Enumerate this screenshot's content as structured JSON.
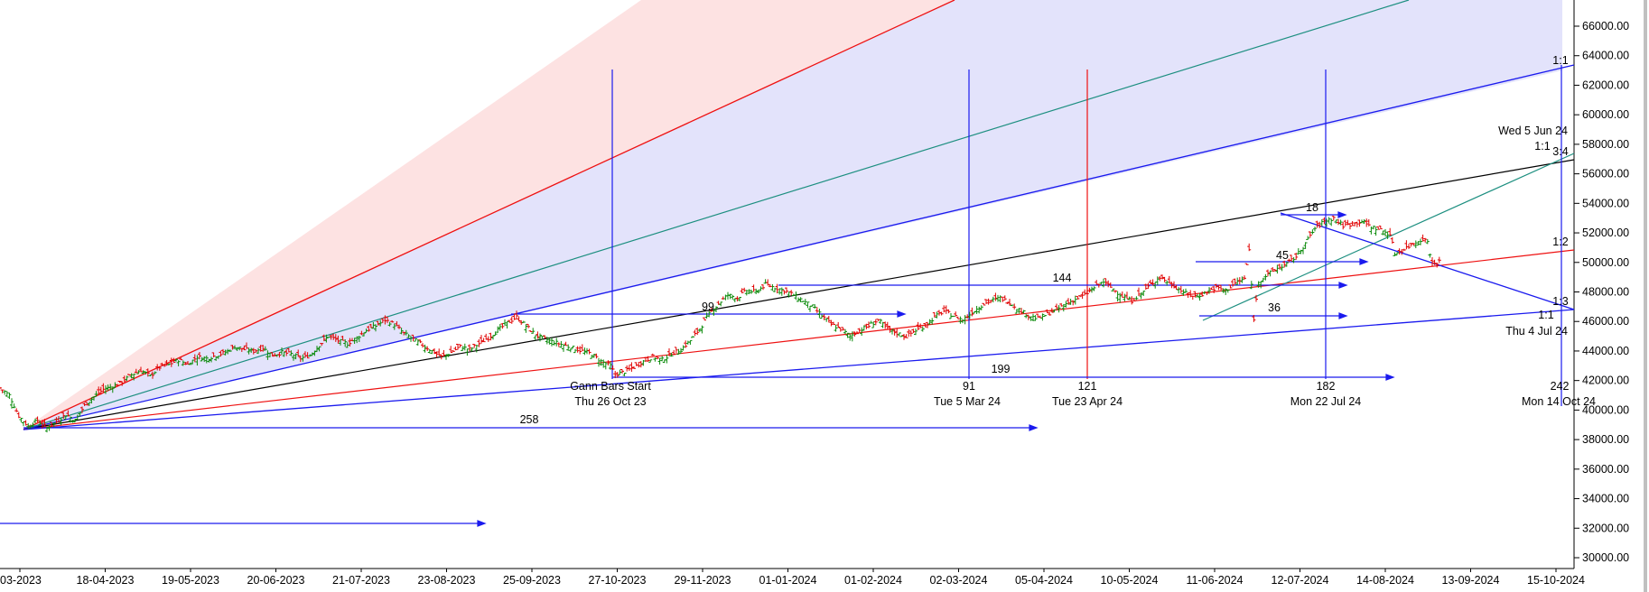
{
  "chart_data": {
    "type": "line",
    "title": "",
    "xlabel": "",
    "ylabel": "",
    "ylim": [
      30000,
      67000
    ],
    "yticks": [
      30000,
      32000,
      34000,
      36000,
      38000,
      40000,
      42000,
      44000,
      46000,
      48000,
      50000,
      52000,
      54000,
      56000,
      58000,
      60000,
      62000,
      64000,
      66000
    ],
    "x_dates": [
      "03-2023",
      "18-04-2023",
      "19-05-2023",
      "20-06-2023",
      "21-07-2023",
      "23-08-2023",
      "25-09-2023",
      "27-10-2023",
      "29-11-2023",
      "01-01-2024",
      "01-02-2024",
      "02-03-2024",
      "05-04-2024",
      "10-05-2024",
      "11-06-2024",
      "12-07-2024",
      "14-08-2024",
      "13-09-2024",
      "15-10-2024"
    ],
    "price_series": [
      [
        0,
        41500
      ],
      [
        4,
        41000
      ],
      [
        8,
        39600
      ],
      [
        12,
        38900
      ],
      [
        16,
        39300
      ],
      [
        20,
        38800
      ],
      [
        24,
        39200
      ],
      [
        28,
        39700
      ],
      [
        32,
        39300
      ],
      [
        36,
        40300
      ],
      [
        40,
        40900
      ],
      [
        44,
        41400
      ],
      [
        48,
        41600
      ],
      [
        52,
        41900
      ],
      [
        56,
        42400
      ],
      [
        60,
        42700
      ],
      [
        64,
        42300
      ],
      [
        68,
        42900
      ],
      [
        72,
        43100
      ],
      [
        76,
        43400
      ],
      [
        80,
        43100
      ],
      [
        84,
        43600
      ],
      [
        88,
        43500
      ],
      [
        92,
        43700
      ],
      [
        96,
        43900
      ],
      [
        100,
        44300
      ],
      [
        104,
        44100
      ],
      [
        108,
        44000
      ],
      [
        112,
        44200
      ],
      [
        116,
        43700
      ],
      [
        120,
        43900
      ],
      [
        124,
        43800
      ],
      [
        128,
        43500
      ],
      [
        132,
        43700
      ],
      [
        136,
        44400
      ],
      [
        140,
        45000
      ],
      [
        144,
        44700
      ],
      [
        148,
        44500
      ],
      [
        152,
        44900
      ],
      [
        156,
        45400
      ],
      [
        160,
        45700
      ],
      [
        164,
        46100
      ],
      [
        168,
        45800
      ],
      [
        172,
        45200
      ],
      [
        176,
        44800
      ],
      [
        180,
        44400
      ],
      [
        184,
        44000
      ],
      [
        188,
        43600
      ],
      [
        192,
        43900
      ],
      [
        196,
        44300
      ],
      [
        200,
        44100
      ],
      [
        204,
        44500
      ],
      [
        208,
        44900
      ],
      [
        212,
        45400
      ],
      [
        216,
        45900
      ],
      [
        220,
        46300
      ],
      [
        224,
        45700
      ],
      [
        228,
        45100
      ],
      [
        232,
        44800
      ],
      [
        236,
        44600
      ],
      [
        240,
        44400
      ],
      [
        244,
        44200
      ],
      [
        248,
        44000
      ],
      [
        252,
        43800
      ],
      [
        256,
        43300
      ],
      [
        260,
        43000
      ],
      [
        262,
        42400
      ],
      [
        266,
        42600
      ],
      [
        270,
        42900
      ],
      [
        274,
        43300
      ],
      [
        278,
        43600
      ],
      [
        282,
        43400
      ],
      [
        286,
        43800
      ],
      [
        290,
        44100
      ],
      [
        294,
        44700
      ],
      [
        298,
        45500
      ],
      [
        302,
        46500
      ],
      [
        306,
        47200
      ],
      [
        310,
        47800
      ],
      [
        314,
        47600
      ],
      [
        318,
        48100
      ],
      [
        322,
        48000
      ],
      [
        326,
        48500
      ],
      [
        330,
        48300
      ],
      [
        334,
        48100
      ],
      [
        338,
        47800
      ],
      [
        342,
        47400
      ],
      [
        346,
        47000
      ],
      [
        350,
        46400
      ],
      [
        354,
        45800
      ],
      [
        358,
        45500
      ],
      [
        362,
        45000
      ],
      [
        366,
        45400
      ],
      [
        370,
        45700
      ],
      [
        374,
        46100
      ],
      [
        378,
        45500
      ],
      [
        382,
        45200
      ],
      [
        386,
        45000
      ],
      [
        390,
        45400
      ],
      [
        394,
        45700
      ],
      [
        398,
        46300
      ],
      [
        402,
        46700
      ],
      [
        406,
        46400
      ],
      [
        410,
        46100
      ],
      [
        414,
        46600
      ],
      [
        418,
        47100
      ],
      [
        422,
        47400
      ],
      [
        426,
        47600
      ],
      [
        430,
        47300
      ],
      [
        434,
        46800
      ],
      [
        438,
        46400
      ],
      [
        442,
        46200
      ],
      [
        446,
        46500
      ],
      [
        450,
        46800
      ],
      [
        454,
        47200
      ],
      [
        458,
        47500
      ],
      [
        462,
        47800
      ],
      [
        466,
        48300
      ],
      [
        470,
        48700
      ],
      [
        474,
        48200
      ],
      [
        478,
        47700
      ],
      [
        482,
        47400
      ],
      [
        486,
        47900
      ],
      [
        490,
        48500
      ],
      [
        494,
        49000
      ],
      [
        498,
        48600
      ],
      [
        502,
        48200
      ],
      [
        506,
        47800
      ],
      [
        510,
        47700
      ],
      [
        514,
        48000
      ],
      [
        518,
        48300
      ],
      [
        522,
        48100
      ],
      [
        526,
        48600
      ],
      [
        530,
        48900
      ],
      [
        532,
        50800
      ],
      [
        534,
        46200
      ],
      [
        536,
        48700
      ],
      [
        540,
        49200
      ],
      [
        544,
        49600
      ],
      [
        548,
        49900
      ],
      [
        552,
        50400
      ],
      [
        556,
        51300
      ],
      [
        560,
        52300
      ],
      [
        564,
        52800
      ],
      [
        568,
        53000
      ],
      [
        572,
        52500
      ],
      [
        576,
        52600
      ],
      [
        580,
        52800
      ],
      [
        584,
        52400
      ],
      [
        588,
        52200
      ],
      [
        592,
        51900
      ],
      [
        594,
        50600
      ],
      [
        598,
        50900
      ],
      [
        602,
        51300
      ],
      [
        606,
        51600
      ],
      [
        608,
        51400
      ],
      [
        610,
        49900
      ],
      [
        614,
        50100
      ]
    ],
    "time_lines": [
      {
        "label": "Gann Bars Start",
        "date": "Thu 26 Oct 23",
        "bar": 260,
        "color": "#0000ff"
      },
      {
        "label": "91",
        "date": "Tue 5 Mar 24",
        "bar": 351,
        "color": "#0000ff"
      },
      {
        "label": "121",
        "date": "Tue 23 Apr 24",
        "bar": 381,
        "color": "#ff0000"
      },
      {
        "label": "182",
        "date": "Mon 22 Jul 24",
        "bar": 442,
        "color": "#0000ff"
      },
      {
        "label": "242",
        "date": "Mon 14 Oct 24",
        "bar": 502,
        "color": "#0000ff"
      }
    ],
    "fan_labels": [
      "1:1",
      "1:1",
      "3:4",
      "1:2",
      "1:3",
      "1:1"
    ],
    "fan_dates": [
      "Wed 5 Jun 24",
      "Thu 4 Jul 24"
    ],
    "count_labels": [
      "258",
      "99",
      "144",
      "199",
      "18",
      "45",
      "36"
    ]
  },
  "colors": {
    "fan_fill_red": "#fde2e2",
    "fan_fill_blue": "#e3e3fb",
    "up_bar": "#0a8a0a",
    "down_bar": "#e00000",
    "blue_line": "#1a1aee",
    "red_line": "#ee1111",
    "teal_line": "#1d8f80",
    "black_line": "#000000",
    "axis_line": "#0000ff"
  }
}
